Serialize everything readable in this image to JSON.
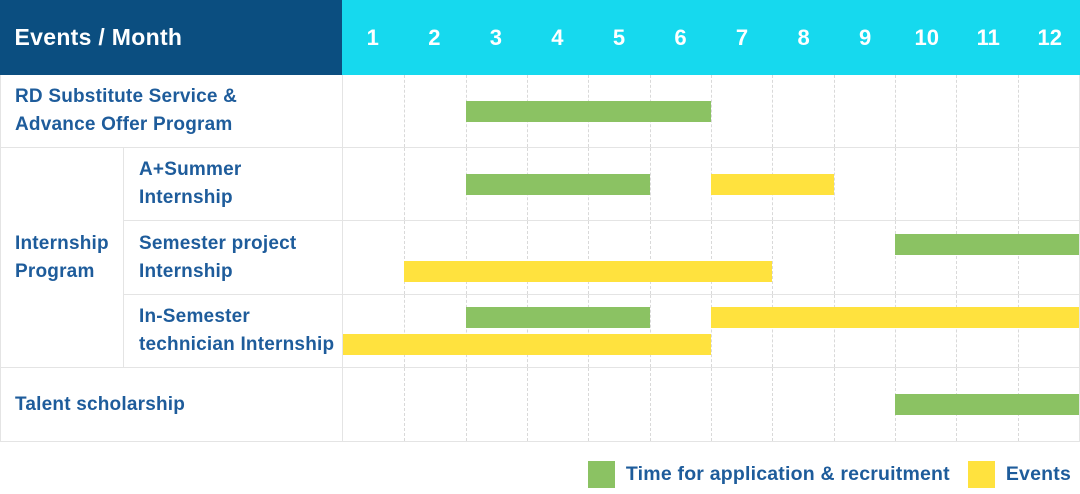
{
  "header": {
    "events_month_label": "Events / Month"
  },
  "months": [
    "1",
    "2",
    "3",
    "4",
    "5",
    "6",
    "7",
    "8",
    "9",
    "10",
    "11",
    "12"
  ],
  "colors": {
    "navy": "#0b4e80",
    "cyan": "#16d9ee",
    "green": "#8bc263",
    "yellow": "#ffe23e",
    "text_blue": "#1e5c9b",
    "grid_line": "#e4e4e4",
    "dashed_line": "#d9d9d9"
  },
  "chart_data": {
    "type": "gantt",
    "unit": "month",
    "x_ticks": [
      1,
      2,
      3,
      4,
      5,
      6,
      7,
      8,
      9,
      10,
      11,
      12
    ],
    "group_cell_label": "Internship\nProgram",
    "rows": [
      {
        "label": "RD Substitute Service &\nAdvance Offer Program",
        "group": null,
        "bars": [
          {
            "series": "Time for application & recruitment",
            "color_key": "green",
            "start": 3,
            "end": 6,
            "line": 1
          }
        ]
      },
      {
        "label": "A+Summer\nInternship",
        "group": "Internship Program",
        "bars": [
          {
            "series": "Time for application & recruitment",
            "color_key": "green",
            "start": 3,
            "end": 5,
            "line": 1
          },
          {
            "series": "Events",
            "color_key": "yellow",
            "start": 7,
            "end": 8,
            "line": 1
          }
        ]
      },
      {
        "label": "Semester project\nInternship",
        "group": "Internship Program",
        "bars": [
          {
            "series": "Time for application & recruitment",
            "color_key": "green",
            "start": 10,
            "end": 12,
            "line": 1
          },
          {
            "series": "Events",
            "color_key": "yellow",
            "start": 2,
            "end": 7,
            "line": 2
          }
        ]
      },
      {
        "label": "In-Semester\ntechnician Internship",
        "group": "Internship Program",
        "bars": [
          {
            "series": "Time for application & recruitment",
            "color_key": "green",
            "start": 3,
            "end": 5,
            "line": 1
          },
          {
            "series": "Events",
            "color_key": "yellow",
            "start": 7,
            "end": 12,
            "line": 1
          },
          {
            "series": "Events",
            "color_key": "yellow",
            "start": 1,
            "end": 6,
            "line": 2
          }
        ]
      },
      {
        "label": "Talent scholarship",
        "group": null,
        "bars": [
          {
            "series": "Time for application & recruitment",
            "color_key": "green",
            "start": 10,
            "end": 12,
            "line": 1
          }
        ]
      }
    ],
    "legend": [
      {
        "label": "Time for application & recruitment",
        "color_key": "green"
      },
      {
        "label": "Events",
        "color_key": "yellow"
      }
    ]
  }
}
